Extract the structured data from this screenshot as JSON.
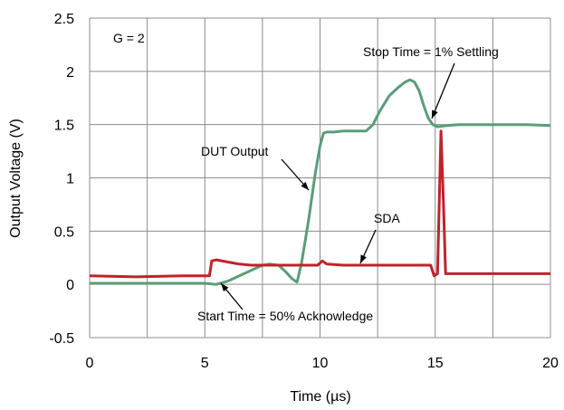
{
  "chart_data": {
    "type": "line",
    "xlabel": "Time (µs)",
    "ylabel": "Output Voltage (V)",
    "xlim": [
      0,
      20
    ],
    "ylim": [
      -0.5,
      2.5
    ],
    "x_ticks": [
      "0",
      "5",
      "10",
      "15",
      "20"
    ],
    "y_ticks": [
      "2.5",
      "2",
      "1.5",
      "1",
      "0.5",
      "0",
      "-0.5"
    ],
    "grid": true,
    "legend": "none",
    "colors": {
      "dut": "#5a9e78",
      "sda": "#c0222b"
    },
    "series": [
      {
        "key": "dut",
        "x": [
          0,
          2,
          4,
          5,
          5.5,
          6,
          6.5,
          7,
          7.5,
          7.8,
          8.2,
          8.5,
          8.8,
          9.0,
          9.2,
          9.5,
          9.8,
          10.0,
          10.15,
          10.3,
          10.6,
          11,
          11.5,
          12,
          12.3,
          12.6,
          13,
          13.4,
          13.7,
          13.9,
          14.1,
          14.3,
          14.5,
          14.7,
          14.9,
          15.1,
          15.5,
          16,
          17,
          18,
          19,
          20
        ],
        "y": [
          0.01,
          0.01,
          0.01,
          0.01,
          0.0,
          0.03,
          0.08,
          0.13,
          0.18,
          0.19,
          0.18,
          0.12,
          0.05,
          0.02,
          0.2,
          0.6,
          1.05,
          1.3,
          1.42,
          1.43,
          1.43,
          1.44,
          1.44,
          1.44,
          1.5,
          1.63,
          1.77,
          1.85,
          1.9,
          1.92,
          1.9,
          1.82,
          1.68,
          1.56,
          1.5,
          1.48,
          1.49,
          1.5,
          1.5,
          1.5,
          1.5,
          1.49
        ]
      },
      {
        "key": "sda",
        "x": [
          0,
          2,
          4,
          5.2,
          5.3,
          5.5,
          6,
          6.5,
          7,
          8,
          9,
          9.9,
          10.1,
          10.3,
          11,
          12,
          13,
          14,
          14.8,
          14.95,
          15.1,
          15.25,
          15.35,
          15.45,
          15.55,
          16,
          17,
          18,
          19,
          20
        ],
        "y": [
          0.08,
          0.07,
          0.08,
          0.08,
          0.22,
          0.23,
          0.21,
          0.19,
          0.18,
          0.18,
          0.18,
          0.18,
          0.22,
          0.19,
          0.18,
          0.18,
          0.18,
          0.18,
          0.18,
          0.08,
          0.1,
          1.44,
          0.8,
          0.1,
          0.1,
          0.1,
          0.1,
          0.1,
          0.1,
          0.1
        ]
      }
    ],
    "annotations": {
      "gain": "G = 2",
      "stop": "Stop Time = 1% Settling",
      "dut": "DUT Output",
      "sda": "SDA",
      "start": "Start Time = 50% Acknowledge"
    }
  }
}
